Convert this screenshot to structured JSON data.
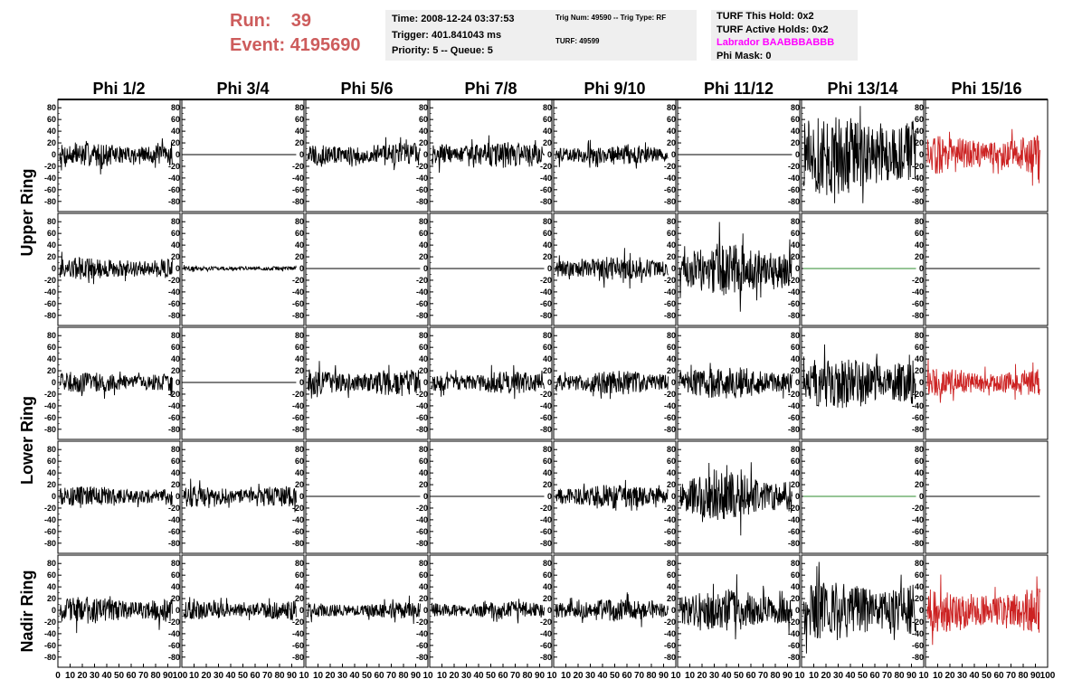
{
  "header": {
    "run_label": "Run:",
    "run_value": "39",
    "event_label": "Event:",
    "event_value": "4195690"
  },
  "info_time": {
    "time": "Time: 2008-12-24 03:37:53",
    "trigger": "Trigger: 401.841043 ms",
    "priority": "Priority: 5 -- Queue: 5"
  },
  "info_trig": {
    "trig": "Trig Num: 49590 -- Trig Type: RF",
    "turf": "TURF: 49599"
  },
  "info_turf": {
    "this_hold": "TURF This Hold: 0x2",
    "active_holds": "TURF Active Holds: 0x2",
    "labrador": "Labrador BAABBBABBB",
    "phi_mask": "Phi Mask: 0"
  },
  "colors": {
    "header_red": "#cd5c5c",
    "labrador_magenta": "#ff00ff",
    "trace_black": "#000000",
    "trace_red": "#cc2222",
    "trace_green": "#2e8b2e"
  },
  "chart_data": {
    "type": "line",
    "columns": [
      "Phi 1/2",
      "Phi 3/4",
      "Phi 5/6",
      "Phi 7/8",
      "Phi 9/10",
      "Phi 11/12",
      "Phi 13/14",
      "Phi 15/16"
    ],
    "ring_labels": [
      "Upper Ring",
      "Lower Ring",
      "Nadir Ring"
    ],
    "row_ring": [
      0,
      0,
      1,
      1,
      2
    ],
    "xlim": [
      0,
      100
    ],
    "ylim": [
      -85,
      85
    ],
    "y_ticks": [
      80,
      60,
      40,
      20,
      0,
      -20,
      -40,
      -60,
      -80
    ],
    "x_ticks_first": [
      "0",
      "10",
      "20",
      "30",
      "40",
      "50",
      "60",
      "70",
      "80",
      "90",
      "100"
    ],
    "x_ticks_rest": [
      "10",
      "20",
      "30",
      "40",
      "50",
      "60",
      "70",
      "80",
      "90",
      "100"
    ],
    "x_ticks_inner": [
      "10",
      "20",
      "30",
      "40",
      "50",
      "60",
      "70",
      "80",
      "90",
      "10"
    ],
    "panels": [
      [
        {
          "amp": 16,
          "color": "black"
        },
        {
          "amp": 0,
          "color": "black"
        },
        {
          "amp": 16,
          "color": "black"
        },
        {
          "amp": 18,
          "color": "black"
        },
        {
          "amp": 14,
          "color": "black"
        },
        {
          "amp": 0,
          "color": "black"
        },
        {
          "amp": 55,
          "color": "black"
        },
        {
          "amp": 25,
          "color": "red"
        }
      ],
      [
        {
          "amp": 15,
          "color": "black"
        },
        {
          "amp": 3,
          "color": "black"
        },
        {
          "amp": 0,
          "color": "black"
        },
        {
          "amp": 0,
          "color": "black"
        },
        {
          "amp": 16,
          "color": "black"
        },
        {
          "amp": 35,
          "color": "black"
        },
        {
          "amp": 0,
          "color": "green"
        },
        {
          "amp": 0,
          "color": "black"
        }
      ],
      [
        {
          "amp": 14,
          "color": "black"
        },
        {
          "amp": 0,
          "color": "black"
        },
        {
          "amp": 18,
          "color": "black"
        },
        {
          "amp": 15,
          "color": "black"
        },
        {
          "amp": 16,
          "color": "black"
        },
        {
          "amp": 22,
          "color": "black"
        },
        {
          "amp": 35,
          "color": "black"
        },
        {
          "amp": 18,
          "color": "red"
        }
      ],
      [
        {
          "amp": 13,
          "color": "black"
        },
        {
          "amp": 14,
          "color": "black"
        },
        {
          "amp": 0,
          "color": "black"
        },
        {
          "amp": 0,
          "color": "black"
        },
        {
          "amp": 16,
          "color": "black"
        },
        {
          "amp": 32,
          "color": "black"
        },
        {
          "amp": 0,
          "color": "green"
        },
        {
          "amp": 0,
          "color": "black"
        }
      ],
      [
        {
          "amp": 18,
          "color": "black"
        },
        {
          "amp": 13,
          "color": "black"
        },
        {
          "amp": 11,
          "color": "black"
        },
        {
          "amp": 12,
          "color": "black"
        },
        {
          "amp": 15,
          "color": "black"
        },
        {
          "amp": 28,
          "color": "black"
        },
        {
          "amp": 40,
          "color": "black"
        },
        {
          "amp": 30,
          "color": "red"
        }
      ]
    ]
  }
}
